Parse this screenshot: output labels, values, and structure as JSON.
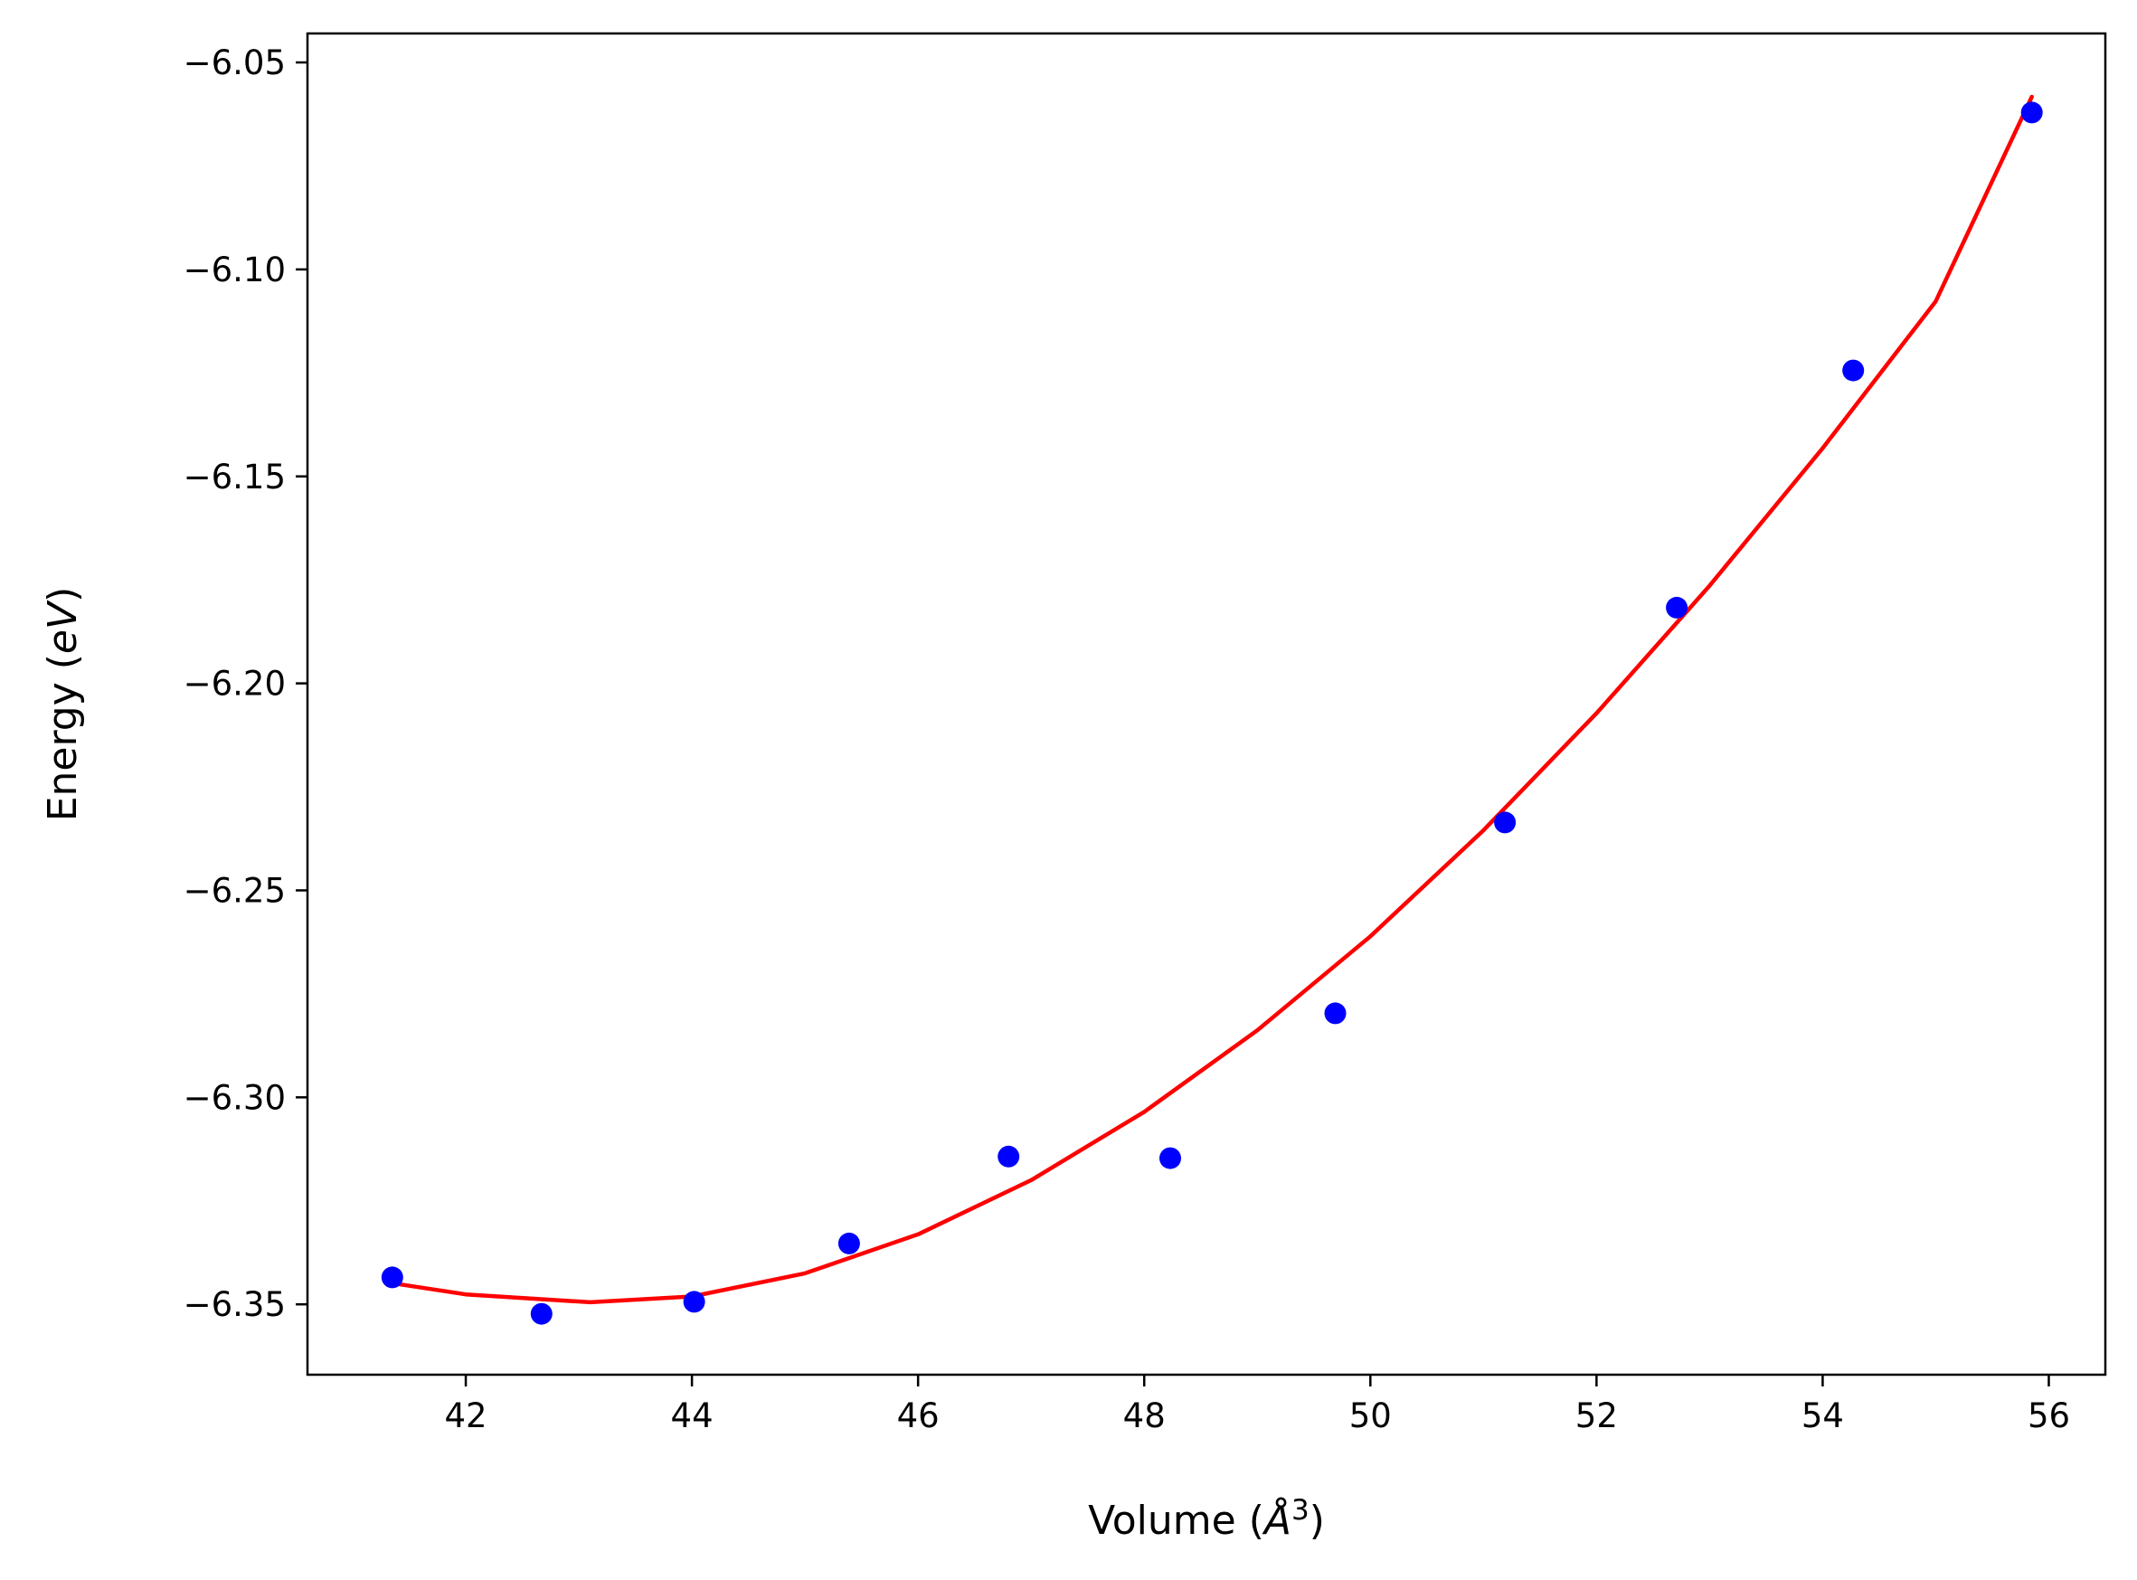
{
  "chart_data": {
    "type": "scatter",
    "xlabel": {
      "prefix": "Volume (",
      "symbol": "Å",
      "sup": "3",
      "suffix": ")"
    },
    "ylabel": {
      "prefix": "Energy (",
      "symbol": "eV",
      "suffix": ")"
    },
    "xlim": [
      40.6,
      56.5
    ],
    "ylim": [
      -6.367,
      -6.043
    ],
    "x_ticks": [
      42,
      44,
      46,
      48,
      50,
      52,
      54,
      56
    ],
    "y_ticks": [
      -6.35,
      -6.3,
      -6.25,
      -6.2,
      -6.15,
      -6.1,
      -6.05
    ],
    "x_tick_labels": [
      "42",
      "44",
      "46",
      "48",
      "50",
      "52",
      "54",
      "56"
    ],
    "y_tick_labels": [
      "−6.35",
      "−6.30",
      "−6.25",
      "−6.20",
      "−6.15",
      "−6.10",
      "−6.05"
    ],
    "grid": false,
    "series": [
      {
        "kind": "points",
        "color": "#0000ff",
        "x": [
          41.35,
          42.67,
          44.02,
          45.39,
          46.8,
          48.23,
          49.69,
          51.19,
          52.71,
          54.27,
          55.85
        ],
        "y": [
          -6.3435,
          -6.3523,
          -6.3494,
          -6.3353,
          -6.3143,
          -6.3147,
          -6.2797,
          -6.2336,
          -6.1817,
          -6.1244,
          -6.0621
        ]
      },
      {
        "kind": "fit-line",
        "color": "#ff0000",
        "x": [
          41.35,
          42.0,
          43.1,
          44.0,
          45.0,
          46.0,
          47.0,
          48.0,
          49.0,
          50.0,
          51.0,
          52.0,
          53.0,
          54.0,
          55.0,
          55.85
        ],
        "y": [
          -6.3449,
          -6.3476,
          -6.3495,
          -6.3481,
          -6.3425,
          -6.3331,
          -6.32,
          -6.3035,
          -6.2838,
          -6.2611,
          -6.2355,
          -6.2072,
          -6.1764,
          -6.1432,
          -6.1077,
          -6.0583
        ]
      }
    ]
  }
}
